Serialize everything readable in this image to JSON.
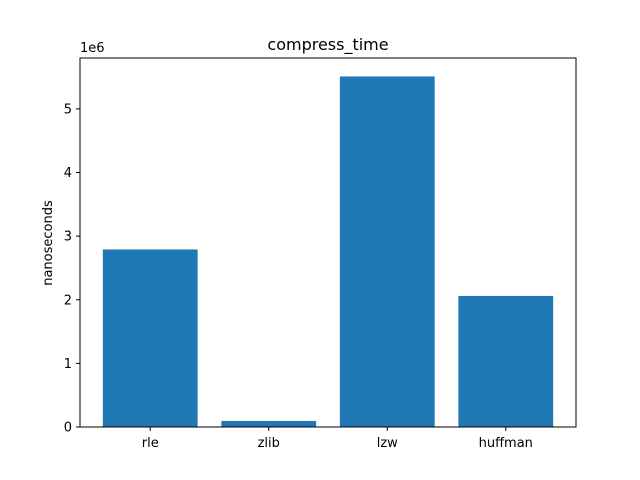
{
  "chart_data": {
    "type": "bar",
    "title": "compress_time",
    "xlabel": "",
    "ylabel": "nanoseconds",
    "offset_label": "1e6",
    "categories": [
      "rle",
      "zlib",
      "lzw",
      "huffman"
    ],
    "values": [
      2790000,
      95000,
      5510000,
      2060000
    ],
    "ylim": [
      0,
      5800000
    ],
    "yticks": [
      0,
      1000000,
      2000000,
      3000000,
      4000000,
      5000000
    ],
    "ytick_labels": [
      "0",
      "1",
      "2",
      "3",
      "4",
      "5"
    ],
    "grid": false,
    "bar_color": "#1f77b4"
  }
}
